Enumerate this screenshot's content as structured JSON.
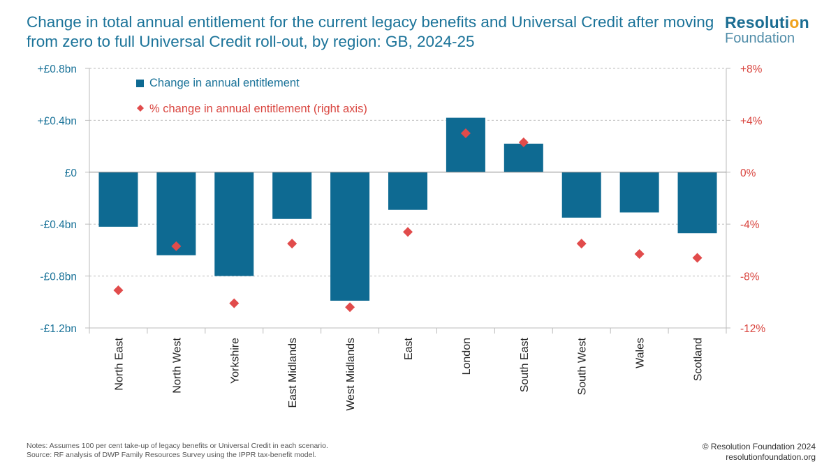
{
  "title": "Change in total annual entitlement for the current legacy benefits and Universal Credit after moving from zero to full Universal Credit roll-out, by region: GB, 2024-25",
  "logo": {
    "line1_main": "Resoluti",
    "line1_dot": "o",
    "line1_end": "n",
    "line2": "Foundation"
  },
  "notes": {
    "line1": "Notes: Assumes 100 per cent take-up of legacy benefits or Universal Credit in each scenario.",
    "line2": "Source: RF analysis of DWP Family Resources Survey using the IPPR tax-benefit model."
  },
  "credit": {
    "line1": "© Resolution Foundation 2024",
    "line2": "resolutionfoundation.org"
  },
  "colors": {
    "bar": "#0e6a92",
    "marker": "#e14b4b",
    "left_axis": "#1b7399",
    "right_axis": "#d9453f",
    "grid": "#bbbbbb"
  },
  "chart_data": {
    "type": "bar",
    "categories": [
      "North East",
      "North West",
      "Yorkshire",
      "East Midlands",
      "West Midlands",
      "East",
      "London",
      "South East",
      "South West",
      "Wales",
      "Scotland"
    ],
    "series": [
      {
        "name": "Change in annual entitlement",
        "kind": "bar",
        "axis": "left",
        "unit": "£bn",
        "values": [
          -0.42,
          -0.64,
          -0.8,
          -0.36,
          -0.99,
          -0.29,
          0.42,
          0.22,
          -0.35,
          -0.31,
          -0.47
        ]
      },
      {
        "name": "% change in annual entitlement (right axis)",
        "kind": "scatter",
        "marker": "diamond",
        "axis": "right",
        "unit": "%",
        "values": [
          -9.1,
          -5.7,
          -10.1,
          -5.5,
          -10.4,
          -4.6,
          3.0,
          2.3,
          -5.5,
          -6.3,
          -6.6
        ]
      }
    ],
    "left_axis": {
      "ylim": [
        -1.2,
        0.8
      ],
      "ticks": [
        0.8,
        0.4,
        0,
        -0.4,
        -0.8,
        -1.2
      ],
      "tick_labels": [
        "+£0.8bn",
        "+£0.4bn",
        "£0",
        "-£0.4bn",
        "-£0.8bn",
        "-£1.2bn"
      ]
    },
    "right_axis": {
      "ylim": [
        -12,
        8
      ],
      "ticks": [
        8,
        4,
        0,
        -4,
        -8,
        -12
      ],
      "tick_labels": [
        "+8%",
        "+4%",
        "0%",
        "-4%",
        "-8%",
        "-12%"
      ]
    },
    "grid": true,
    "legend_position": "top-left",
    "xlabel": "",
    "ylabel": ""
  }
}
